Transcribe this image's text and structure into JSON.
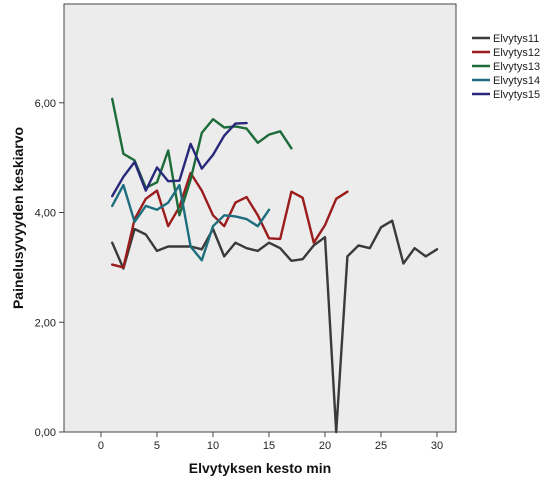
{
  "chart_data": {
    "type": "line",
    "xlabel": "Elvytyksen kesto min",
    "ylabel": "Painelusyvyyden keskiarvo",
    "xlim": [
      -3.3,
      31.7
    ],
    "ylim": [
      0,
      7.8
    ],
    "x_ticks": [
      0,
      5,
      10,
      15,
      20,
      25,
      30
    ],
    "x_tick_labels": [
      "0",
      "5",
      "10",
      "15",
      "20",
      "25",
      "30"
    ],
    "y_ticks": [
      0,
      2,
      4,
      6
    ],
    "y_tick_labels": [
      "0,00",
      "2,00",
      "4,00",
      "6,00"
    ],
    "grid": false,
    "legend_position": "top-right, outside plot",
    "plot_background": "#ececec",
    "series": [
      {
        "name": "Elvytys11",
        "color": "#3a3a3a",
        "x": [
          1,
          2,
          3,
          4,
          5,
          6,
          7,
          8,
          9,
          10,
          11,
          12,
          13,
          14,
          15,
          16,
          17,
          18,
          19,
          20,
          21,
          22,
          23,
          24,
          25,
          26,
          27,
          28,
          29,
          30
        ],
        "y": [
          3.45,
          2.98,
          3.7,
          3.6,
          3.3,
          3.38,
          3.38,
          3.38,
          3.33,
          3.7,
          3.2,
          3.45,
          3.35,
          3.3,
          3.45,
          3.35,
          3.12,
          3.15,
          3.4,
          3.55,
          0.0,
          3.2,
          3.4,
          3.35,
          3.73,
          3.85,
          3.07,
          3.35,
          3.2,
          3.33
        ]
      },
      {
        "name": "Elvytys12",
        "color": "#9b1c1c",
        "x": [
          1,
          2,
          3,
          4,
          5,
          6,
          7,
          8,
          9,
          10,
          11,
          12,
          13,
          14,
          15,
          16,
          17,
          18,
          19,
          20,
          21,
          22
        ],
        "y": [
          3.05,
          3.0,
          3.88,
          4.25,
          4.4,
          3.75,
          4.1,
          4.72,
          4.4,
          3.95,
          3.75,
          4.18,
          4.28,
          3.95,
          3.53,
          3.52,
          4.38,
          4.27,
          3.45,
          3.77,
          4.25,
          4.38
        ]
      },
      {
        "name": "Elvytys13",
        "color": "#1e6b3a",
        "x": [
          1,
          2,
          3,
          4,
          5,
          6,
          7,
          8,
          9,
          10,
          11,
          12,
          13,
          14,
          15,
          16,
          17
        ],
        "y": [
          6.07,
          5.07,
          4.95,
          4.45,
          4.55,
          5.13,
          3.95,
          4.6,
          5.45,
          5.7,
          5.55,
          5.57,
          5.53,
          5.27,
          5.42,
          5.48,
          5.17
        ]
      },
      {
        "name": "Elvytys14",
        "color": "#1e6e7e",
        "x": [
          1,
          2,
          3,
          4,
          5,
          6,
          7,
          8,
          9,
          10,
          11,
          12,
          13,
          14,
          15
        ],
        "y": [
          4.12,
          4.5,
          3.83,
          4.12,
          4.05,
          4.18,
          4.5,
          3.38,
          3.13,
          3.75,
          3.95,
          3.93,
          3.88,
          3.75,
          4.05
        ]
      },
      {
        "name": "Elvytys15",
        "color": "#28287a",
        "x": [
          1,
          2,
          3,
          4,
          5,
          6,
          7,
          8,
          9,
          10,
          11,
          12,
          13
        ],
        "y": [
          4.3,
          4.65,
          4.92,
          4.4,
          4.82,
          4.57,
          4.58,
          5.25,
          4.8,
          5.05,
          5.4,
          5.62,
          5.63
        ]
      }
    ]
  }
}
